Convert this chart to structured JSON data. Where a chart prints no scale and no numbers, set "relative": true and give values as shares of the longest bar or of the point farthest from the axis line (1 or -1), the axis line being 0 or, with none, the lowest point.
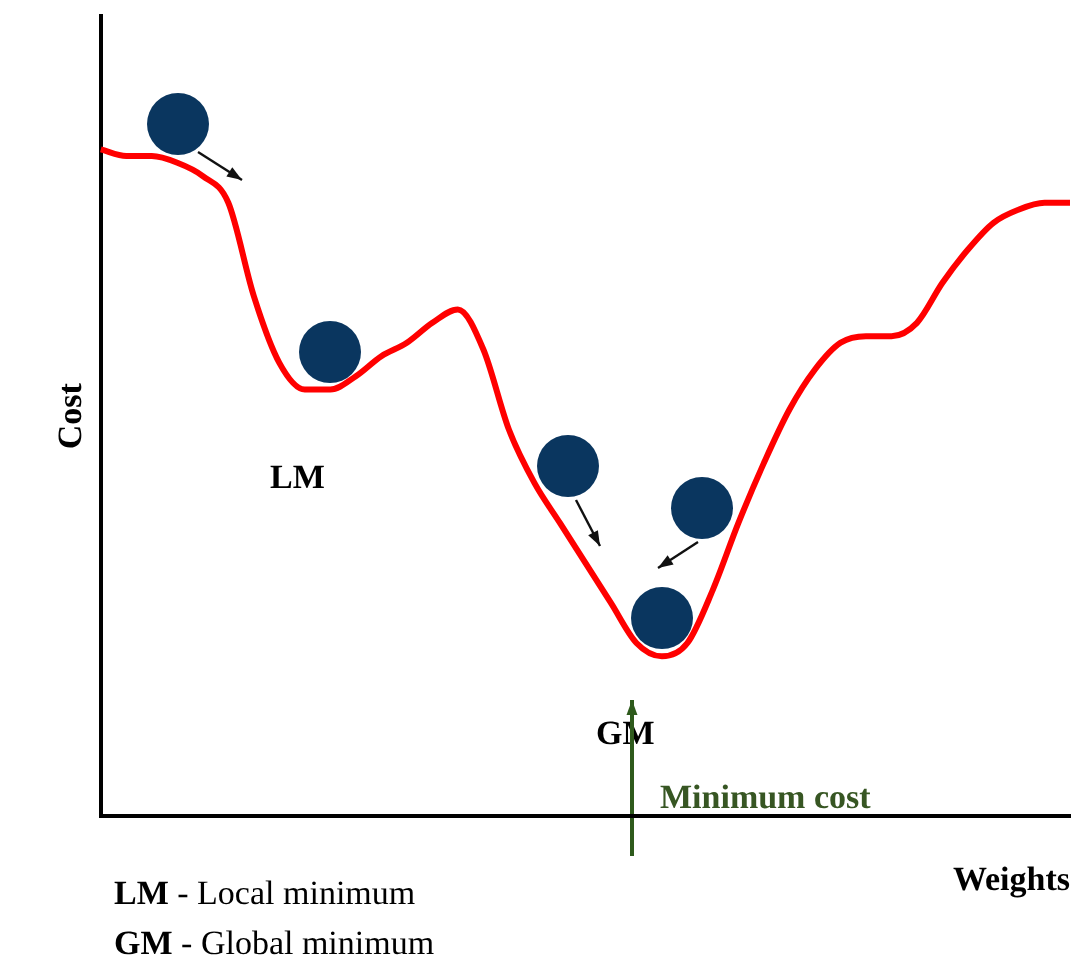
{
  "chart_data": {
    "type": "line",
    "relative": true,
    "xlabel": "Weights",
    "ylabel": "Cost",
    "color": "#ff0000",
    "grid": false,
    "legend": false,
    "marker": "none",
    "categories": [
      null,
      null,
      null,
      null,
      null,
      null,
      null,
      null,
      null,
      null,
      null,
      null,
      null,
      null,
      null,
      null,
      null,
      null,
      null,
      null,
      null,
      null,
      null,
      null,
      null,
      null,
      null,
      null,
      null,
      null,
      null,
      null,
      null,
      null,
      null,
      null,
      null,
      null,
      null
    ],
    "values": [
      1.0,
      0.99,
      0.99,
      0.98,
      0.96,
      0.92,
      0.78,
      0.68,
      0.64,
      0.64,
      0.66,
      0.69,
      0.71,
      0.74,
      0.76,
      0.7,
      0.58,
      0.5,
      0.44,
      0.38,
      0.32,
      0.26,
      0.24,
      0.26,
      0.34,
      0.44,
      0.53,
      0.61,
      0.67,
      0.71,
      0.72,
      0.72,
      0.74,
      0.8,
      0.85,
      0.89,
      0.91,
      0.92,
      0.92
    ],
    "annotations": [
      "LM",
      "GM",
      "Minimum cost",
      "LM - Local minimum",
      "GM - Global minimum"
    ]
  }
}
